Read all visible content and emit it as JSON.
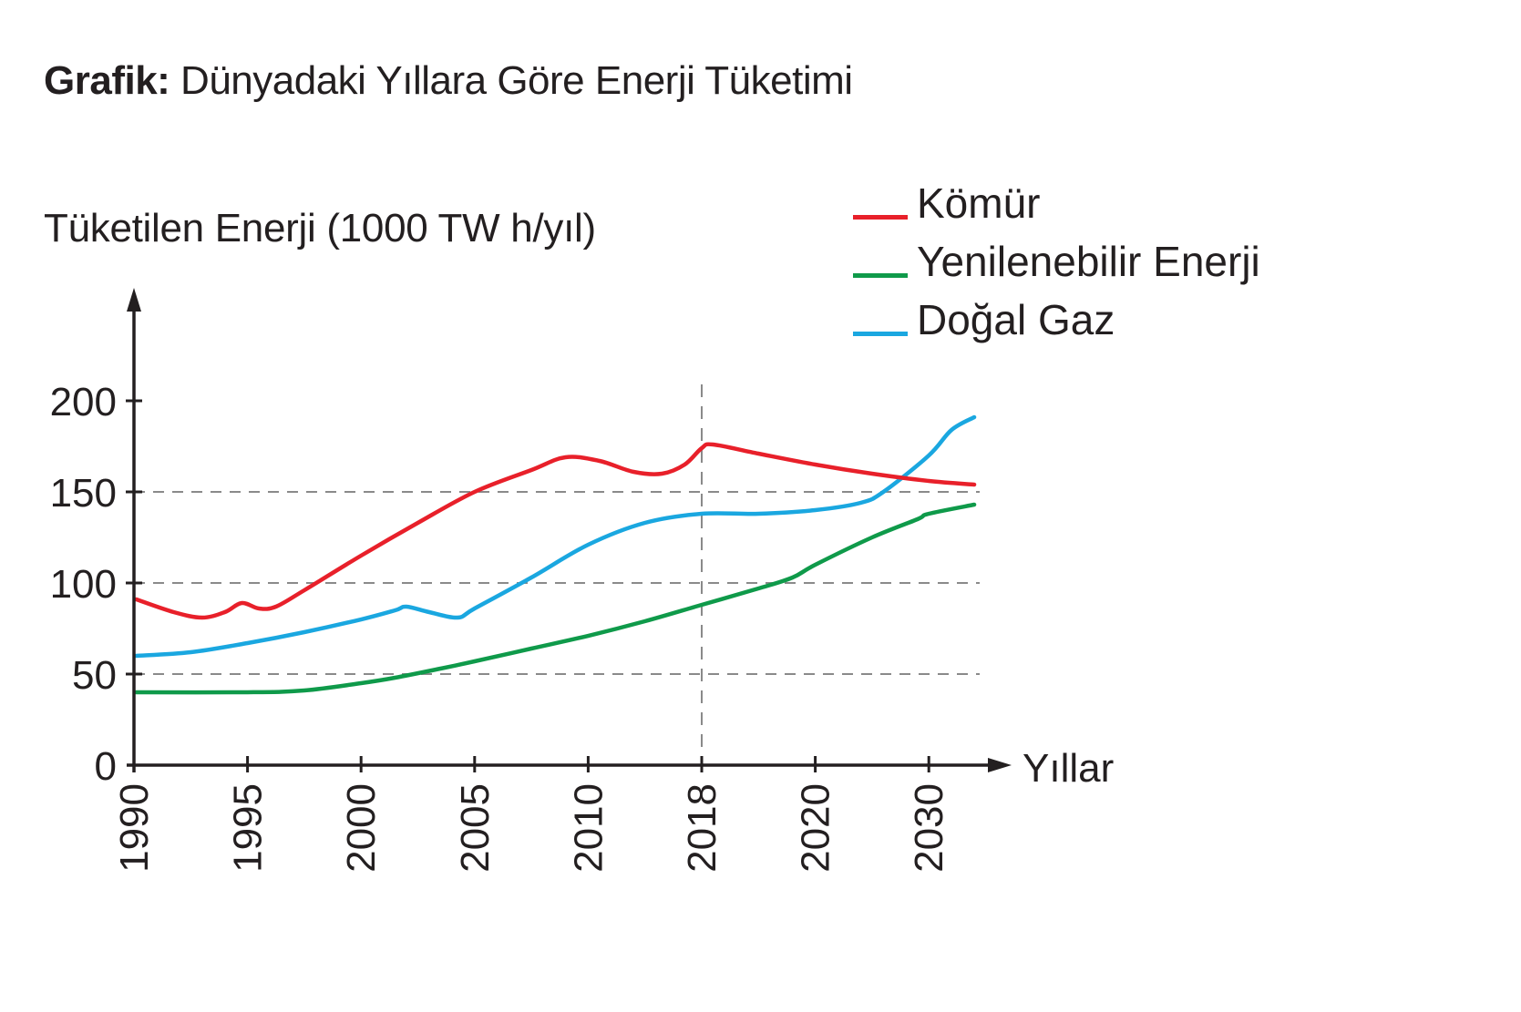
{
  "header": {
    "title_prefix": "Grafik:",
    "title_text": " Dünyadaki Yıllara Göre Enerji Tüketimi"
  },
  "colors": {
    "komur": "#e8202a",
    "yenilenebilir": "#0f9a4a",
    "dogal_gaz": "#1aa7e0",
    "axis": "#231f20",
    "grid": "#8a8a8a"
  },
  "legend": {
    "items": [
      {
        "label": "Kömür",
        "color": "#e8202a"
      },
      {
        "label": "Yenilenebilir Enerji",
        "color": "#0f9a4a"
      },
      {
        "label": "Doğal Gaz",
        "color": "#1aa7e0"
      }
    ]
  },
  "chart_data": {
    "type": "line",
    "title": "Grafik: Dünyadaki Yıllara Göre Enerji Tüketimi",
    "xlabel": "Yıllar",
    "ylabel": "Tüketilen Enerji (1000 TW h/yıl)",
    "x_ticks": [
      "1990",
      "1995",
      "2000",
      "2005",
      "2010",
      "2018",
      "2020",
      "2030"
    ],
    "y_ticks": [
      0,
      50,
      100,
      150,
      200
    ],
    "ylim": [
      0,
      200
    ],
    "gridlines_y": [
      50,
      100,
      150
    ],
    "reference_line_x": "2018",
    "legend_position": "top-right",
    "categories": [
      "1990",
      "1995",
      "2000",
      "2005",
      "2010",
      "2018",
      "2020",
      "2030"
    ],
    "series": [
      {
        "name": "Kömür",
        "color": "#e8202a",
        "values": [
          92,
          88,
          115,
          150,
          168,
          175,
          165,
          156
        ]
      },
      {
        "name": "Yenilenebilir Enerji",
        "color": "#0f9a4a",
        "values": [
          40,
          40,
          45,
          57,
          71,
          88,
          110,
          138
        ]
      },
      {
        "name": "Doğal Gaz",
        "color": "#1aa7e0",
        "values": [
          60,
          67,
          80,
          86,
          121,
          138,
          140,
          170
        ]
      }
    ],
    "series_detail": [
      {
        "name": "Kömür",
        "points_t": [
          [
            0.02,
            91
          ],
          [
            0.35,
            84
          ],
          [
            0.6,
            81
          ],
          [
            0.8,
            84
          ],
          [
            0.95,
            89
          ],
          [
            1.1,
            86
          ],
          [
            1.25,
            87
          ],
          [
            1.5,
            96
          ],
          [
            2,
            115
          ],
          [
            2.5,
            133
          ],
          [
            3,
            150
          ],
          [
            3.5,
            162
          ],
          [
            3.8,
            169
          ],
          [
            4.1,
            167
          ],
          [
            4.4,
            161
          ],
          [
            4.65,
            160
          ],
          [
            4.85,
            165
          ],
          [
            5,
            174
          ],
          [
            5.1,
            176
          ],
          [
            5.5,
            171
          ],
          [
            6,
            165
          ],
          [
            6.5,
            160
          ],
          [
            7,
            156
          ],
          [
            7.4,
            154
          ]
        ]
      },
      {
        "name": "Yenilenebilir Enerji",
        "points_t": [
          [
            0.02,
            40
          ],
          [
            1,
            40
          ],
          [
            1.5,
            41
          ],
          [
            2,
            45
          ],
          [
            2.3,
            48
          ],
          [
            2.7,
            53
          ],
          [
            3,
            57
          ],
          [
            3.5,
            64
          ],
          [
            4,
            71
          ],
          [
            4.5,
            79
          ],
          [
            5,
            88
          ],
          [
            5.5,
            97
          ],
          [
            5.8,
            103
          ],
          [
            6,
            110
          ],
          [
            6.5,
            125
          ],
          [
            6.9,
            135
          ],
          [
            7,
            138
          ],
          [
            7.4,
            143
          ]
        ]
      },
      {
        "name": "Doğal Gaz",
        "points_t": [
          [
            0.02,
            60
          ],
          [
            0.5,
            62
          ],
          [
            1,
            67
          ],
          [
            1.5,
            73
          ],
          [
            2,
            80
          ],
          [
            2.3,
            85
          ],
          [
            2.4,
            87
          ],
          [
            2.6,
            84
          ],
          [
            2.85,
            81
          ],
          [
            3,
            86
          ],
          [
            3.5,
            103
          ],
          [
            4,
            121
          ],
          [
            4.5,
            133
          ],
          [
            5,
            138
          ],
          [
            5.5,
            138
          ],
          [
            6,
            140
          ],
          [
            6.4,
            144
          ],
          [
            6.6,
            150
          ],
          [
            7,
            170
          ],
          [
            7.2,
            184
          ],
          [
            7.4,
            191
          ]
        ]
      }
    ]
  }
}
